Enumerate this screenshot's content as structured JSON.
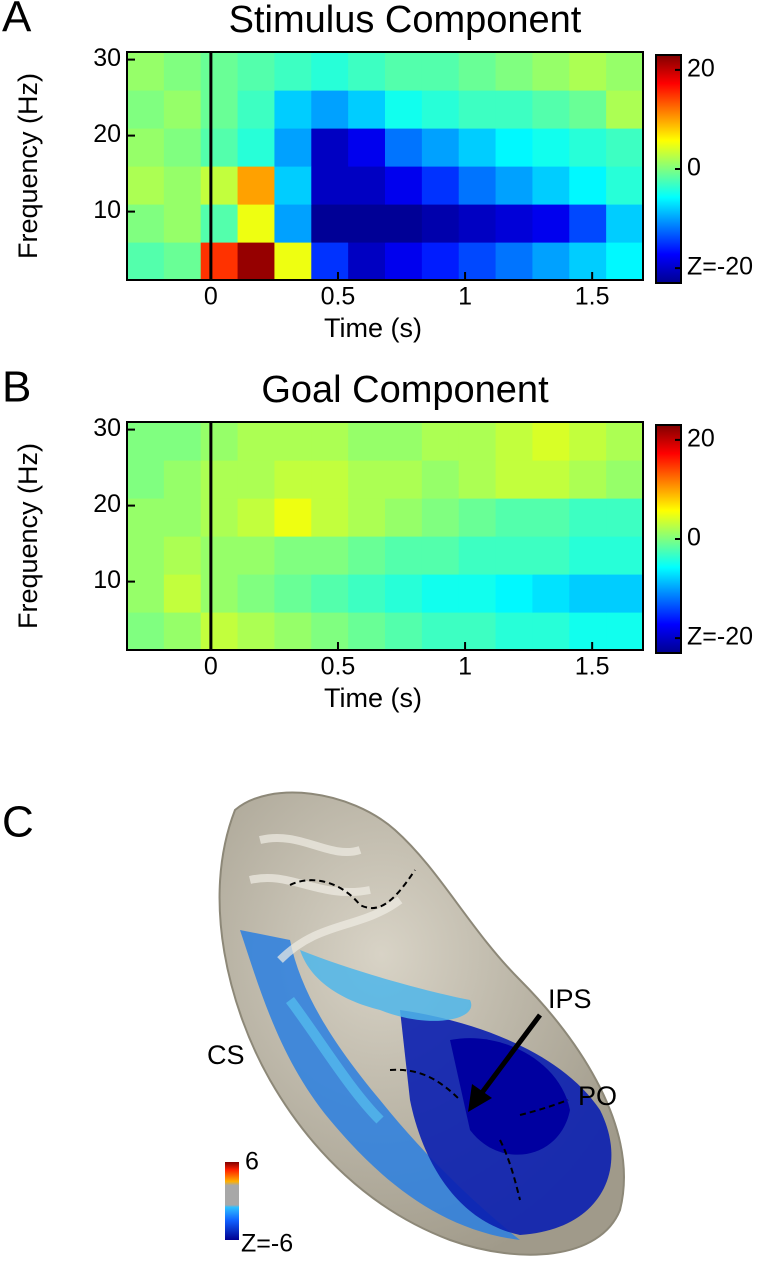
{
  "chart_data": [
    {
      "type": "heatmap",
      "letter": "A",
      "title": "Stimulus Component",
      "xlabel": "Time (s)",
      "ylabel": "Frequency (Hz)",
      "x": [
        -0.2575,
        -0.1125,
        0.0325,
        0.1775,
        0.3225,
        0.4675,
        0.6125,
        0.7575,
        0.9025,
        1.0475,
        1.1925,
        1.3375,
        1.4825,
        1.6275
      ],
      "y": [
        3.5,
        8.5,
        13.5,
        18.5,
        23.5,
        28.5
      ],
      "values": [
        [
          -2,
          -1,
          15,
          22,
          5,
          -15,
          -20,
          -18,
          -16,
          -14,
          -12,
          -10,
          -8,
          -6
        ],
        [
          0,
          1,
          -2,
          5,
          -10,
          -22,
          -22,
          -22,
          -21,
          -20,
          -19,
          -18,
          -14,
          -8
        ],
        [
          2,
          1,
          3,
          10,
          -8,
          -20,
          -20,
          -18,
          -15,
          -12,
          -10,
          -8,
          -6,
          -4
        ],
        [
          1,
          0,
          -2,
          -4,
          -10,
          -20,
          -18,
          -12,
          -10,
          -8,
          -6,
          -5,
          -4,
          -3
        ],
        [
          0,
          1,
          -1,
          -3,
          -8,
          -10,
          -8,
          -5,
          -4,
          -3,
          -3,
          -2,
          -1,
          2
        ],
        [
          1,
          0,
          -1,
          -2,
          -3,
          -4,
          -3,
          -2,
          -2,
          -1,
          0,
          1,
          2,
          1
        ]
      ],
      "xlim": [
        -0.33,
        1.7
      ],
      "xticks": [
        0,
        0.5,
        1,
        1.5
      ],
      "ylim": [
        1,
        31
      ],
      "yticks": [
        10,
        20,
        30
      ],
      "vline": 0,
      "colormap": "jet",
      "clim": [
        -23,
        23
      ],
      "cticks": [
        20,
        0,
        {
          "value": -20,
          "label": "Z=-20"
        }
      ]
    },
    {
      "type": "heatmap",
      "letter": "B",
      "title": "Goal Component",
      "xlabel": "Time (s)",
      "ylabel": "Frequency (Hz)",
      "x": [
        -0.2575,
        -0.1125,
        0.0325,
        0.1775,
        0.3225,
        0.4675,
        0.6125,
        0.7575,
        0.9025,
        1.0475,
        1.1925,
        1.3375,
        1.4825,
        1.6275
      ],
      "y": [
        3.5,
        8.5,
        13.5,
        18.5,
        23.5,
        28.5
      ],
      "values": [
        [
          0,
          1,
          3,
          2,
          1,
          0,
          -1,
          -2,
          -3,
          -3,
          -4,
          -4,
          -5,
          -5
        ],
        [
          1,
          3,
          1,
          0,
          -1,
          -2,
          -3,
          -4,
          -5,
          -5,
          -6,
          -7,
          -8,
          -8
        ],
        [
          1,
          2,
          1,
          1,
          0,
          0,
          -1,
          -2,
          -2,
          -3,
          -3,
          -3,
          -4,
          -4
        ],
        [
          1,
          1,
          2,
          3,
          5,
          3,
          2,
          1,
          0,
          -1,
          -2,
          -2,
          -3,
          -3
        ],
        [
          0,
          1,
          2,
          2,
          3,
          3,
          2,
          2,
          1,
          2,
          3,
          3,
          2,
          1
        ],
        [
          0,
          0,
          1,
          2,
          2,
          2,
          1,
          1,
          2,
          2,
          3,
          4,
          3,
          2
        ]
      ],
      "xlim": [
        -0.33,
        1.7
      ],
      "xticks": [
        0,
        0.5,
        1,
        1.5
      ],
      "ylim": [
        1,
        31
      ],
      "yticks": [
        10,
        20,
        30
      ],
      "vline": 0,
      "colormap": "jet",
      "clim": [
        -23,
        23
      ],
      "cticks": [
        20,
        0,
        {
          "value": -20,
          "label": "Z=-20"
        }
      ]
    }
  ],
  "brain": {
    "letter": "C",
    "labels": [
      "CS",
      "IPS",
      "PO"
    ],
    "colorbar_labels": [
      "6",
      "Z=-6"
    ]
  }
}
